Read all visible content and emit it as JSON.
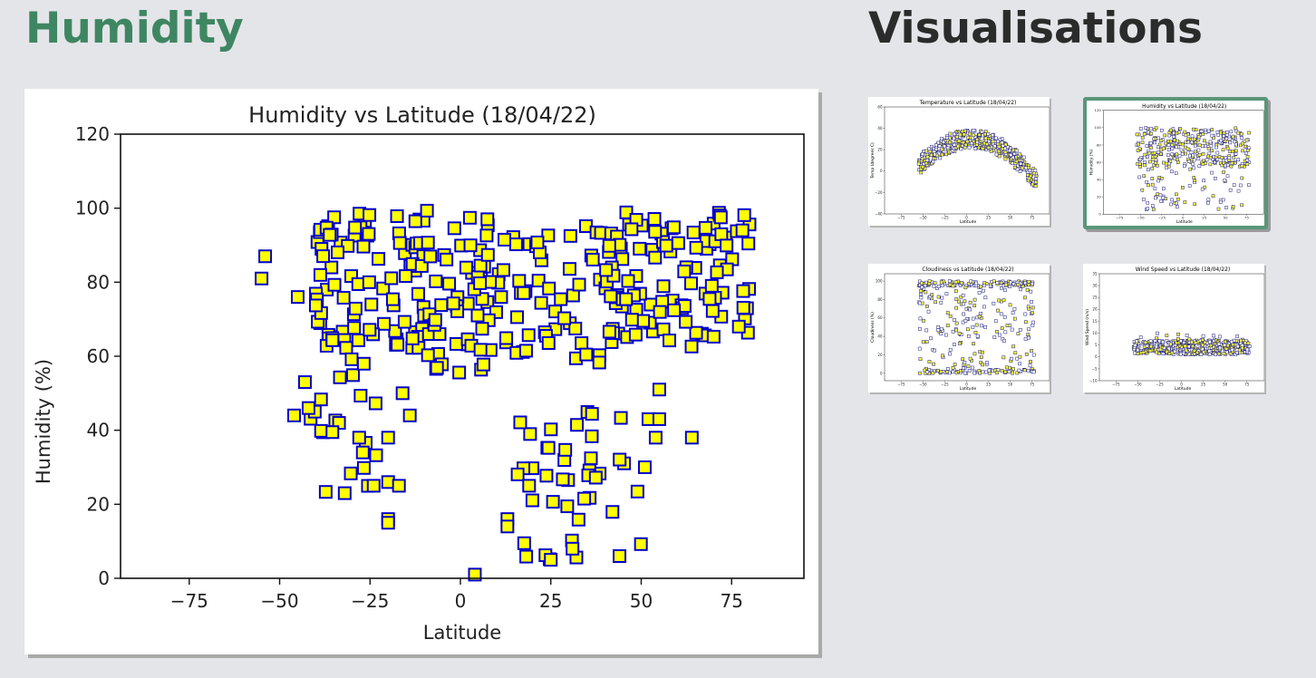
{
  "header": {
    "title": "Humidity",
    "visualisations_title": "Visualisations"
  },
  "chart_data": [
    {
      "type": "scatter",
      "title": "Humidity vs Latitude (18/04/22)",
      "xlabel": "Latitude",
      "ylabel": "Humidity (%)",
      "xlim": [
        -94,
        95
      ],
      "ylim": [
        0,
        120
      ],
      "xticks": [
        -75,
        -50,
        -25,
        0,
        25,
        50,
        75
      ],
      "yticks": [
        0,
        20,
        40,
        60,
        80,
        100,
        120
      ],
      "marker_fill": "#ffff00",
      "marker_edge": "#0000cc",
      "seed": 18042,
      "clusters": [
        {
          "n": 90,
          "x": [
            -40,
            -10
          ],
          "y": [
            62,
            100
          ]
        },
        {
          "n": 60,
          "x": [
            -10,
            12
          ],
          "y": [
            55,
            100
          ]
        },
        {
          "n": 55,
          "x": [
            12,
            45
          ],
          "y": [
            58,
            96
          ]
        },
        {
          "n": 100,
          "x": [
            40,
            80
          ],
          "y": [
            62,
            100
          ]
        },
        {
          "n": 40,
          "x": [
            15,
            50
          ],
          "y": [
            5,
            45
          ]
        },
        {
          "n": 20,
          "x": [
            -45,
            -15
          ],
          "y": [
            20,
            60
          ]
        }
      ],
      "fixed_points": [
        {
          "x": -54,
          "y": 87
        },
        {
          "x": -55,
          "y": 81
        },
        {
          "x": -45,
          "y": 76
        },
        {
          "x": -46,
          "y": 44
        },
        {
          "x": -42,
          "y": 46
        },
        {
          "x": -43,
          "y": 53
        },
        {
          "x": -32,
          "y": 23
        },
        {
          "x": -28,
          "y": 38
        },
        {
          "x": -27,
          "y": 34
        },
        {
          "x": -24,
          "y": 25
        },
        {
          "x": -20,
          "y": 26
        },
        {
          "x": -20,
          "y": 16
        },
        {
          "x": -20,
          "y": 15
        },
        {
          "x": -20,
          "y": 38
        },
        {
          "x": -17,
          "y": 25
        },
        {
          "x": -16,
          "y": 50
        },
        {
          "x": -14,
          "y": 44
        },
        {
          "x": 4,
          "y": 1
        },
        {
          "x": 25,
          "y": 5
        },
        {
          "x": 31,
          "y": 8
        },
        {
          "x": 44,
          "y": 6
        },
        {
          "x": 64,
          "y": 38
        },
        {
          "x": 77,
          "y": 68
        },
        {
          "x": 78,
          "y": 94
        },
        {
          "x": 13,
          "y": 16
        },
        {
          "x": 13,
          "y": 14
        },
        {
          "x": 19,
          "y": 25
        },
        {
          "x": 52,
          "y": 43
        },
        {
          "x": 55,
          "y": 43
        },
        {
          "x": 51,
          "y": 30
        },
        {
          "x": 54,
          "y": 38
        },
        {
          "x": 55,
          "y": 51
        }
      ]
    },
    {
      "type": "scatter",
      "title": "Temperature vs Latitude (18/04/22)",
      "xlabel": "Latitude",
      "ylabel": "Temp (degrees C)",
      "xlim": [
        -94,
        95
      ],
      "ylim": [
        -40,
        60
      ],
      "xticks": [
        -75,
        -50,
        -25,
        0,
        25,
        50,
        75
      ],
      "yticks": [
        -40,
        -20,
        0,
        20,
        40,
        60
      ],
      "seed": 111,
      "shape": "temperature",
      "n": 420
    },
    {
      "type": "scatter",
      "title": "Humidity vs Latitude (18/04/22)",
      "xlabel": "Latitude",
      "ylabel": "Humidity (%)",
      "xlim": [
        -94,
        95
      ],
      "ylim": [
        0,
        120
      ],
      "xticks": [
        -75,
        -50,
        -25,
        0,
        25,
        50,
        75
      ],
      "yticks": [
        0,
        20,
        40,
        60,
        80,
        100,
        120
      ],
      "seed": 222,
      "shape": "humidity",
      "n": 400
    },
    {
      "type": "scatter",
      "title": "Cloudiness vs Latitude (18/04/22)",
      "xlabel": "Latitude",
      "ylabel": "Cloudiness (%)",
      "xlim": [
        -94,
        95
      ],
      "ylim": [
        -8,
        108
      ],
      "xticks": [
        -75,
        -50,
        -25,
        0,
        25,
        50,
        75
      ],
      "yticks": [
        0,
        20,
        40,
        60,
        80,
        100
      ],
      "seed": 333,
      "shape": "cloudiness",
      "n": 380
    },
    {
      "type": "scatter",
      "title": "Wind Speed vs Latitude (18/04/22)",
      "xlabel": "Latitude",
      "ylabel": "Wind Speed (m/s)",
      "xlim": [
        -94,
        95
      ],
      "ylim": [
        -10,
        35
      ],
      "xticks": [
        -75,
        -50,
        -25,
        0,
        25,
        50,
        75
      ],
      "yticks": [
        -10,
        -5,
        0,
        5,
        10,
        15,
        20,
        25,
        30,
        35
      ],
      "seed": 444,
      "shape": "wind",
      "n": 420
    }
  ]
}
